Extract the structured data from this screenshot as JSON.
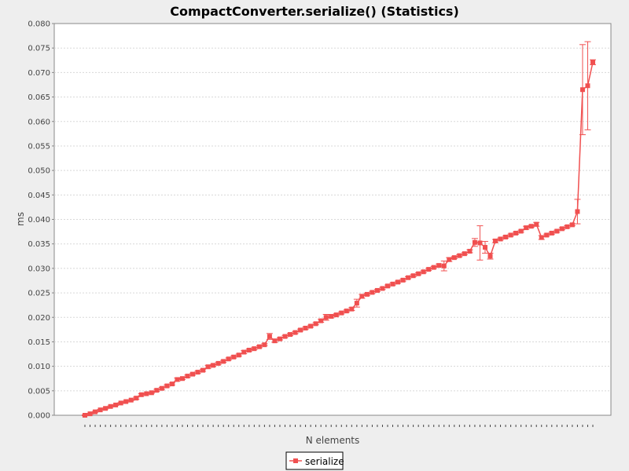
{
  "chart_data": {
    "type": "line",
    "title": "CompactConverter.serialize() (Statistics)",
    "xlabel": "N elements",
    "ylabel": "ms",
    "ylim": [
      0,
      0.08
    ],
    "yticks": [
      "0.000",
      "0.005",
      "0.010",
      "0.015",
      "0.020",
      "0.025",
      "0.030",
      "0.035",
      "0.040",
      "0.045",
      "0.050",
      "0.055",
      "0.060",
      "0.065",
      "0.070",
      "0.075",
      "0.080"
    ],
    "x_tick_labels_visible": false,
    "grid": true,
    "legend_position": "bottom-center",
    "series": [
      {
        "name": "serialize",
        "color": "#f05050",
        "values": [
          0.0,
          0.0003,
          0.0007,
          0.0011,
          0.0014,
          0.0018,
          0.0021,
          0.0025,
          0.0028,
          0.0031,
          0.0035,
          0.0042,
          0.0044,
          0.0046,
          0.0051,
          0.0055,
          0.006,
          0.0064,
          0.0073,
          0.0075,
          0.008,
          0.0084,
          0.0088,
          0.0092,
          0.0099,
          0.0102,
          0.0106,
          0.011,
          0.0115,
          0.0119,
          0.0123,
          0.0129,
          0.0133,
          0.0136,
          0.014,
          0.0144,
          0.0161,
          0.0152,
          0.0156,
          0.0161,
          0.0165,
          0.0169,
          0.0174,
          0.0178,
          0.0182,
          0.0187,
          0.0193,
          0.02,
          0.0202,
          0.0205,
          0.0209,
          0.0213,
          0.0217,
          0.0229,
          0.0243,
          0.0247,
          0.0251,
          0.0255,
          0.0259,
          0.0264,
          0.0268,
          0.0272,
          0.0276,
          0.0281,
          0.0285,
          0.0289,
          0.0293,
          0.0298,
          0.0302,
          0.0306,
          0.0305,
          0.0318,
          0.0322,
          0.0326,
          0.033,
          0.0335,
          0.0353,
          0.0352,
          0.0343,
          0.0325,
          0.0356,
          0.036,
          0.0364,
          0.0368,
          0.0372,
          0.0376,
          0.0383,
          0.0386,
          0.039,
          0.0363,
          0.0368,
          0.0372,
          0.0376,
          0.0381,
          0.0385,
          0.0389,
          0.0416,
          0.0665,
          0.0673,
          0.0721
        ],
        "errors": [
          0.0001,
          0.0001,
          0.0001,
          0.0001,
          0.0001,
          0.0001,
          0.0001,
          0.0001,
          0.0001,
          0.0001,
          0.0002,
          0.0002,
          0.0001,
          0.0001,
          0.0002,
          0.0002,
          0.0002,
          0.0002,
          0.0003,
          0.0002,
          0.0002,
          0.0002,
          0.0002,
          0.0002,
          0.0003,
          0.0002,
          0.0002,
          0.0002,
          0.0002,
          0.0002,
          0.0002,
          0.0003,
          0.0002,
          0.0002,
          0.0002,
          0.0002,
          0.0006,
          0.0003,
          0.0002,
          0.0002,
          0.0002,
          0.0002,
          0.0002,
          0.0002,
          0.0002,
          0.0002,
          0.0003,
          0.0006,
          0.0003,
          0.0002,
          0.0002,
          0.0002,
          0.0003,
          0.0008,
          0.0004,
          0.0002,
          0.0002,
          0.0002,
          0.0002,
          0.0002,
          0.0002,
          0.0002,
          0.0002,
          0.0002,
          0.0002,
          0.0002,
          0.0002,
          0.0002,
          0.0002,
          0.0003,
          0.001,
          0.0004,
          0.0002,
          0.0002,
          0.0002,
          0.0003,
          0.0008,
          0.0035,
          0.0012,
          0.0006,
          0.0003,
          0.0002,
          0.0002,
          0.0002,
          0.0002,
          0.0002,
          0.0003,
          0.0002,
          0.0004,
          0.0004,
          0.0002,
          0.0002,
          0.0002,
          0.0002,
          0.0002,
          0.0002,
          0.0025,
          0.0092,
          0.009,
          0.0005
        ]
      }
    ]
  }
}
